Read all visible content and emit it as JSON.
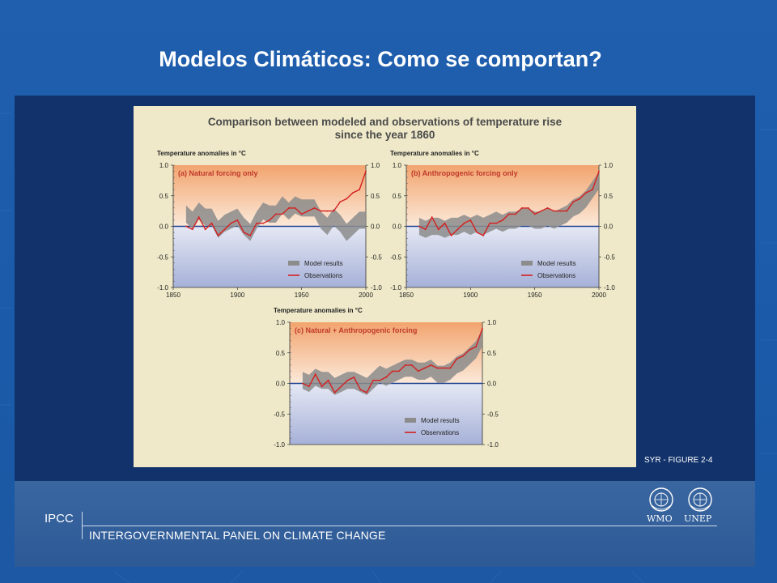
{
  "slide": {
    "title": "Modelos Climáticos: Como se comportan?"
  },
  "figure": {
    "title_line1": "Comparison between modeled and observations of temperature rise",
    "title_line2": "since the year 1860",
    "caption": "SYR - FIGURE 2-4"
  },
  "footer": {
    "org_short": "IPCC",
    "org_full": "INTERGOVERNMENTAL PANEL ON CLIMATE CHANGE",
    "logo_wmo": "WMO",
    "logo_unep": "UNEP"
  },
  "colors": {
    "observations": "#d42020",
    "model": "#8c8c8c",
    "zero_line": "#1b3f8f",
    "warm_band": "#f3b27d",
    "cool_band": "#a9b5dc"
  },
  "chart_data": [
    {
      "id": "a",
      "type": "line",
      "panel_label": "(a) Natural forcing only",
      "ylabel": "Temperature anomalies in °C",
      "xlim": [
        1850,
        2000
      ],
      "ylim": [
        -1.0,
        1.0
      ],
      "x_ticks": [
        "1850",
        "1900",
        "1950",
        "2000"
      ],
      "y_ticks": [
        "1.0",
        "0.5",
        "0.0",
        "-0.5",
        "-1.0"
      ],
      "legend": [
        "Model results",
        "Observations"
      ],
      "x": [
        1860,
        1865,
        1870,
        1875,
        1880,
        1885,
        1890,
        1895,
        1900,
        1905,
        1910,
        1915,
        1920,
        1925,
        1930,
        1935,
        1940,
        1945,
        1950,
        1955,
        1960,
        1965,
        1970,
        1975,
        1980,
        1985,
        1990,
        1995,
        2000
      ],
      "series": [
        {
          "name": "Observations",
          "values": [
            0.0,
            -0.05,
            0.15,
            -0.05,
            0.05,
            -0.15,
            -0.05,
            0.05,
            0.1,
            -0.1,
            -0.15,
            0.05,
            0.05,
            0.1,
            0.2,
            0.2,
            0.3,
            0.3,
            0.2,
            0.25,
            0.3,
            0.25,
            0.25,
            0.25,
            0.4,
            0.45,
            0.55,
            0.6,
            0.9
          ]
        },
        {
          "name": "Model results",
          "values": [
            0.2,
            0.1,
            0.25,
            0.15,
            0.15,
            -0.05,
            0.05,
            0.1,
            0.15,
            0.0,
            -0.1,
            0.1,
            0.25,
            0.2,
            0.2,
            0.35,
            0.25,
            0.35,
            0.3,
            0.3,
            0.3,
            0.1,
            0.0,
            0.15,
            0.05,
            -0.1,
            0.0,
            0.1,
            0.1
          ]
        }
      ]
    },
    {
      "id": "b",
      "type": "line",
      "panel_label": "(b) Anthropogenic forcing only",
      "ylabel": "Temperature anomalies in °C",
      "xlim": [
        1850,
        2000
      ],
      "ylim": [
        -1.0,
        1.0
      ],
      "x_ticks": [
        "1850",
        "1900",
        "1950",
        "2000"
      ],
      "y_ticks": [
        "1.0",
        "0.5",
        "0.0",
        "-0.5",
        "-1.0"
      ],
      "legend": [
        "Model results",
        "Observations"
      ],
      "x": [
        1860,
        1865,
        1870,
        1875,
        1880,
        1885,
        1890,
        1895,
        1900,
        1905,
        1910,
        1915,
        1920,
        1925,
        1930,
        1935,
        1940,
        1945,
        1950,
        1955,
        1960,
        1965,
        1970,
        1975,
        1980,
        1985,
        1990,
        1995,
        2000
      ],
      "series": [
        {
          "name": "Observations",
          "values": [
            0.0,
            -0.05,
            0.15,
            -0.05,
            0.05,
            -0.15,
            -0.05,
            0.05,
            0.1,
            -0.1,
            -0.15,
            0.05,
            0.05,
            0.1,
            0.2,
            0.2,
            0.3,
            0.3,
            0.2,
            0.25,
            0.3,
            0.25,
            0.25,
            0.25,
            0.4,
            0.45,
            0.55,
            0.6,
            0.9
          ]
        },
        {
          "name": "Model results",
          "values": [
            0.0,
            -0.05,
            0.0,
            0.0,
            -0.05,
            0.0,
            0.0,
            0.05,
            0.0,
            0.05,
            0.0,
            0.05,
            0.1,
            0.05,
            0.1,
            0.1,
            0.15,
            0.15,
            0.1,
            0.1,
            0.15,
            0.1,
            0.15,
            0.2,
            0.3,
            0.35,
            0.45,
            0.6,
            0.75
          ]
        }
      ]
    },
    {
      "id": "c",
      "type": "line",
      "panel_label": "(c) Natural + Anthropogenic forcing",
      "ylabel": "Temperature anomalies in °C",
      "xlim": [
        1850,
        2000
      ],
      "ylim": [
        -1.0,
        1.0
      ],
      "x_ticks": [],
      "y_ticks": [
        "1.0",
        "0.5",
        "0.0",
        "-0.5",
        "-1.0"
      ],
      "legend": [
        "Model results",
        "Observations"
      ],
      "x": [
        1860,
        1865,
        1870,
        1875,
        1880,
        1885,
        1890,
        1895,
        1900,
        1905,
        1910,
        1915,
        1920,
        1925,
        1930,
        1935,
        1940,
        1945,
        1950,
        1955,
        1960,
        1965,
        1970,
        1975,
        1980,
        1985,
        1990,
        1995,
        2000
      ],
      "series": [
        {
          "name": "Observations",
          "values": [
            0.0,
            -0.05,
            0.15,
            -0.05,
            0.05,
            -0.15,
            -0.05,
            0.05,
            0.1,
            -0.1,
            -0.15,
            0.05,
            0.05,
            0.1,
            0.2,
            0.2,
            0.3,
            0.3,
            0.2,
            0.25,
            0.3,
            0.25,
            0.25,
            0.25,
            0.4,
            0.45,
            0.55,
            0.6,
            0.9
          ]
        },
        {
          "name": "Model results",
          "values": [
            0.05,
            0.0,
            0.1,
            0.05,
            0.05,
            -0.05,
            0.0,
            0.05,
            0.05,
            0.0,
            -0.05,
            0.05,
            0.15,
            0.1,
            0.15,
            0.2,
            0.25,
            0.25,
            0.2,
            0.2,
            0.25,
            0.15,
            0.15,
            0.2,
            0.3,
            0.35,
            0.45,
            0.55,
            0.75
          ]
        }
      ]
    }
  ]
}
